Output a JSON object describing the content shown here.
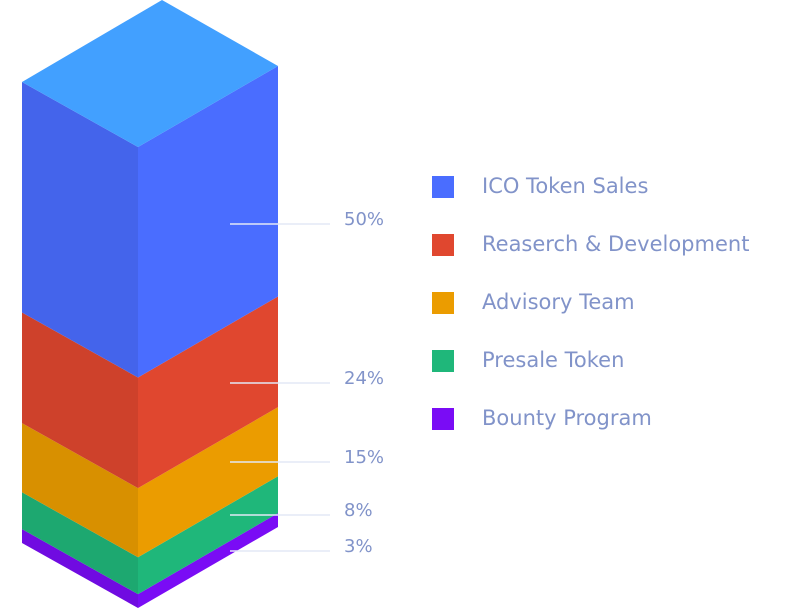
{
  "chart_data": {
    "type": "stacked-block",
    "categories": [
      "ICO Token Sales",
      "Reaserch & Development",
      "Advisory Team",
      "Presale Token",
      "Bounty Program"
    ],
    "values": [
      50,
      24,
      15,
      8,
      3
    ],
    "value_labels": [
      "50%",
      "24%",
      "15%",
      "8%",
      "3%"
    ],
    "colors": [
      "#4a6dff",
      "#e0472f",
      "#eb9c00",
      "#1fb77a",
      "#7a0cf5"
    ],
    "top_color": "#42a0ff"
  }
}
